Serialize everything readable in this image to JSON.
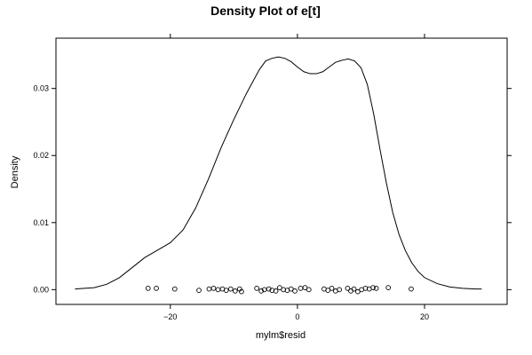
{
  "chart_data": {
    "type": "line",
    "title": "Density Plot of e[t]",
    "xlabel": "mylm$resid",
    "ylabel": "Density",
    "xlim": [
      -38,
      33
    ],
    "ylim": [
      -0.0022,
      0.0375
    ],
    "x_ticks": [
      -20,
      0,
      20
    ],
    "x_tick_labels": [
      "−20",
      "0",
      "20"
    ],
    "y_ticks": [
      0.0,
      0.01,
      0.02,
      0.03
    ],
    "y_tick_labels": [
      "0.00",
      "0.01",
      "0.02",
      "0.03"
    ],
    "grid": false,
    "series": [
      {
        "kind": "density-curve",
        "x": [
          -35,
          -32,
          -30,
          -28,
          -26,
          -24,
          -22,
          -20,
          -18,
          -16,
          -14,
          -12,
          -10,
          -8,
          -6,
          -5,
          -4,
          -3,
          -2,
          -1,
          0,
          1,
          2,
          3,
          4,
          5,
          6,
          7,
          8,
          9,
          10,
          11,
          12,
          13,
          14,
          15,
          16,
          17,
          18,
          19,
          20,
          22,
          24,
          26,
          28,
          29
        ],
        "y": [
          0.0001,
          0.0003,
          0.0008,
          0.0018,
          0.0033,
          0.0048,
          0.0059,
          0.007,
          0.0089,
          0.0122,
          0.0165,
          0.0212,
          0.0254,
          0.0293,
          0.0328,
          0.0341,
          0.0345,
          0.0347,
          0.0345,
          0.034,
          0.0332,
          0.0325,
          0.0322,
          0.0322,
          0.0325,
          0.0332,
          0.0339,
          0.0342,
          0.0344,
          0.0341,
          0.0331,
          0.0306,
          0.0262,
          0.0209,
          0.0159,
          0.0115,
          0.0082,
          0.0058,
          0.004,
          0.0027,
          0.0018,
          0.0009,
          0.0004,
          0.0002,
          0.0001,
          0.0001
        ]
      },
      {
        "kind": "rug-points",
        "x": [
          -23.5,
          -22.2,
          -19.3,
          -15.5,
          -13.9,
          -13.2,
          -12.5,
          -11.8,
          -11.2,
          -10.5,
          -9.8,
          -9.1,
          -8.8,
          -6.4,
          -5.7,
          -5.2,
          -4.5,
          -4.0,
          -3.4,
          -2.8,
          -2.2,
          -1.6,
          -1.0,
          -0.4,
          0.5,
          1.2,
          1.8,
          4.2,
          4.8,
          5.4,
          6.0,
          6.6,
          7.9,
          8.4,
          8.9,
          9.5,
          10.1,
          10.7,
          11.3,
          11.9,
          12.4,
          14.3,
          17.9
        ],
        "y": [
          0.0002,
          0.0002,
          0.0001,
          -0.0001,
          0.0001,
          0.0002,
          0.0,
          0.0001,
          -0.0001,
          0.0001,
          -0.0002,
          0.0001,
          -0.0003,
          0.0002,
          -0.0002,
          0.0,
          0.0001,
          -0.0001,
          -0.0002,
          0.0003,
          0.0,
          -0.0001,
          0.0001,
          -0.0002,
          0.0002,
          0.0003,
          0.0,
          0.0001,
          -0.0001,
          0.0002,
          -0.0002,
          0.0,
          0.0002,
          -0.0002,
          0.0001,
          -0.0003,
          0.0,
          0.0002,
          0.0001,
          0.0003,
          0.0002,
          0.0003,
          0.0001
        ]
      }
    ]
  }
}
